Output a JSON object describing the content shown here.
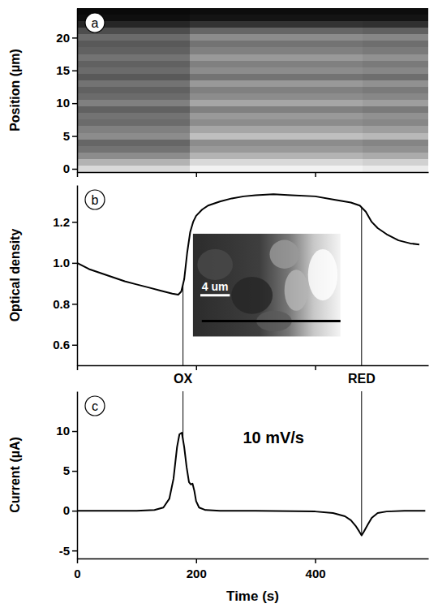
{
  "chart_data": [
    {
      "type": "heatmap",
      "panel_label": "a",
      "ylabel": "Position (µm)",
      "x_edges": [
        0,
        190,
        480,
        590
      ],
      "y": [
        0,
        1,
        2,
        3,
        4,
        5,
        6,
        7,
        8,
        9,
        10,
        11,
        12,
        13,
        14,
        15,
        16,
        17,
        18,
        19,
        20,
        21,
        22,
        23,
        24
      ],
      "cells": [
        [
          0.85,
          0.95,
          0.92
        ],
        [
          0.7,
          0.85,
          0.82
        ],
        [
          0.55,
          0.7,
          0.67
        ],
        [
          0.45,
          0.6,
          0.57
        ],
        [
          0.4,
          0.55,
          0.52
        ],
        [
          0.55,
          0.75,
          0.72
        ],
        [
          0.5,
          0.65,
          0.62
        ],
        [
          0.42,
          0.55,
          0.53
        ],
        [
          0.45,
          0.6,
          0.57
        ],
        [
          0.38,
          0.5,
          0.48
        ],
        [
          0.5,
          0.65,
          0.62
        ],
        [
          0.42,
          0.55,
          0.53
        ],
        [
          0.38,
          0.5,
          0.48
        ],
        [
          0.45,
          0.6,
          0.57
        ],
        [
          0.35,
          0.45,
          0.43
        ],
        [
          0.42,
          0.55,
          0.53
        ],
        [
          0.38,
          0.5,
          0.48
        ],
        [
          0.45,
          0.6,
          0.57
        ],
        [
          0.38,
          0.5,
          0.48
        ],
        [
          0.35,
          0.45,
          0.43
        ],
        [
          0.42,
          0.55,
          0.53
        ],
        [
          0.3,
          0.4,
          0.38
        ],
        [
          0.15,
          0.2,
          0.19
        ],
        [
          0.06,
          0.08,
          0.08
        ],
        [
          0.04,
          0.05,
          0.05
        ]
      ],
      "zlim": [
        0,
        1
      ],
      "xlim": [
        0,
        590
      ],
      "ylim": [
        -0.5,
        24.5
      ],
      "xticks": [
        0,
        200,
        400
      ],
      "yticks": [
        0,
        5,
        10,
        15,
        20
      ],
      "tick_labels": "y"
    },
    {
      "type": "line",
      "panel_label": "b",
      "ylabel": "Optical density",
      "color": "#000000",
      "x": [
        0,
        20,
        40,
        60,
        80,
        100,
        120,
        140,
        160,
        170,
        175,
        180,
        185,
        190,
        195,
        200,
        210,
        220,
        240,
        260,
        280,
        300,
        330,
        360,
        400,
        430,
        460,
        475,
        485,
        495,
        505,
        520,
        540,
        560,
        575
      ],
      "values": [
        1.0,
        0.97,
        0.95,
        0.93,
        0.91,
        0.895,
        0.88,
        0.865,
        0.85,
        0.845,
        0.86,
        0.92,
        1.05,
        1.15,
        1.2,
        1.23,
        1.26,
        1.28,
        1.3,
        1.315,
        1.325,
        1.33,
        1.335,
        1.33,
        1.325,
        1.31,
        1.295,
        1.28,
        1.25,
        1.2,
        1.17,
        1.14,
        1.11,
        1.095,
        1.09
      ],
      "xlim": [
        0,
        590
      ],
      "ylim": [
        0.5,
        1.38
      ],
      "xticks": [
        0,
        200,
        400
      ],
      "yticks": [
        0.6,
        0.8,
        {
          "value": 1,
          "label": "1.0"
        },
        1.2
      ],
      "tick_labels": "y",
      "annotations": [
        {
          "text": "OX",
          "x": 178
        },
        {
          "text": "RED",
          "x": 478
        }
      ],
      "inset": {
        "scale_bar_label": "4 um"
      }
    },
    {
      "type": "line",
      "panel_label": "c",
      "ylabel": "Current (µA)",
      "xlabel": "Time (s)",
      "color": "#000000",
      "x": [
        0,
        50,
        100,
        130,
        145,
        155,
        162,
        168,
        172,
        176,
        180,
        184,
        188,
        191,
        194,
        197,
        200,
        205,
        215,
        240,
        300,
        400,
        430,
        450,
        460,
        468,
        474,
        478,
        482,
        488,
        495,
        505,
        520,
        550,
        585
      ],
      "values": [
        0,
        0,
        0,
        0.1,
        0.4,
        1.5,
        4,
        8,
        9.6,
        9.8,
        8,
        5.5,
        3.6,
        3.3,
        3.4,
        2.5,
        1.2,
        0.4,
        0.1,
        0,
        0,
        -0.1,
        -0.3,
        -0.7,
        -1.2,
        -1.9,
        -2.6,
        -3.1,
        -2.6,
        -1.8,
        -0.9,
        -0.3,
        -0.1,
        0,
        0
      ],
      "xlim": [
        0,
        590
      ],
      "ylim": [
        -6,
        15
      ],
      "xticks": [
        0,
        200,
        400
      ],
      "yticks": [
        -5,
        0,
        5,
        10
      ],
      "annotations": [
        {
          "text": "10 mV/s",
          "x": 330,
          "y": 9
        }
      ]
    }
  ]
}
